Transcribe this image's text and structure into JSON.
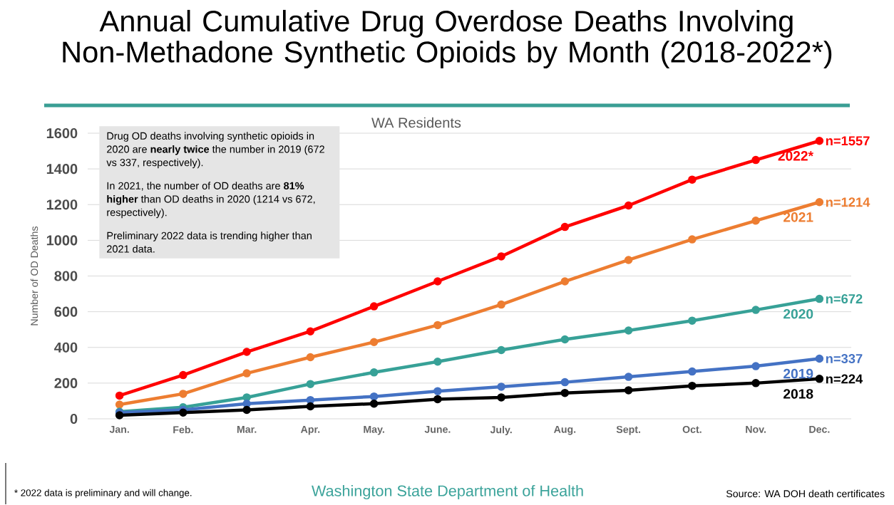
{
  "chart_data": {
    "type": "line",
    "title": "Annual Cumulative Drug Overdose Deaths Involving Non-Methadone Synthetic Opioids by Month (2018-2022*)",
    "subtitle": "WA Residents",
    "ylabel": "Number of OD Deaths",
    "categories": [
      "Jan.",
      "Feb.",
      "Mar.",
      "Apr.",
      "May.",
      "June.",
      "July.",
      "Aug.",
      "Sept.",
      "Oct.",
      "Nov.",
      "Dec."
    ],
    "series": [
      {
        "name": "2022*",
        "color": "#ff0000",
        "values": [
          130,
          245,
          375,
          490,
          630,
          770,
          910,
          1075,
          1195,
          1340,
          1450,
          1557
        ],
        "value_labels": [
          null,
          null,
          null,
          null,
          null,
          null,
          null,
          null,
          null,
          null,
          null,
          "n=1557"
        ]
      },
      {
        "name": "2021",
        "color": "#ed7d31",
        "values": [
          80,
          140,
          255,
          345,
          430,
          525,
          640,
          770,
          890,
          1005,
          1110,
          1214
        ],
        "value_labels": [
          null,
          null,
          null,
          null,
          null,
          null,
          null,
          null,
          null,
          null,
          null,
          "n=1214"
        ]
      },
      {
        "name": "2020",
        "color": "#37a197",
        "values": [
          40,
          65,
          120,
          195,
          260,
          320,
          385,
          445,
          495,
          550,
          610,
          672
        ],
        "value_labels": [
          null,
          null,
          null,
          null,
          null,
          null,
          null,
          null,
          null,
          null,
          null,
          "n=672"
        ]
      },
      {
        "name": "2019",
        "color": "#4472c4",
        "values": [
          35,
          50,
          85,
          105,
          125,
          155,
          180,
          205,
          235,
          265,
          295,
          337
        ],
        "value_labels": [
          null,
          null,
          null,
          null,
          null,
          null,
          null,
          null,
          null,
          null,
          null,
          "n=337"
        ]
      },
      {
        "name": "2018",
        "color": "#000000",
        "values": [
          20,
          35,
          50,
          70,
          85,
          110,
          120,
          145,
          160,
          185,
          200,
          224
        ],
        "value_labels": [
          null,
          null,
          null,
          null,
          null,
          null,
          null,
          null,
          null,
          null,
          null,
          "n=224"
        ]
      }
    ],
    "ylim": [
      0,
      1600
    ],
    "yticks": [
      0,
      200,
      400,
      600,
      800,
      1000,
      1200,
      1400,
      1600
    ],
    "grid": "y",
    "marker": "circle",
    "line_style": "solid",
    "annotations": [
      "Drug OD deaths involving synthetic opioids in 2020 are **nearly twice** the number in 2019 (672 vs 337, respectively).",
      "In 2021, the number of OD deaths are **81% higher** than OD deaths in 2020 (1214 vs 672, respectively).",
      "Preliminary 2022 data is trending higher than 2021 data.",
      "* 2022 data is preliminary and will change.",
      "Washington State Department of Health",
      "Source: WA DOH death certificates"
    ]
  }
}
